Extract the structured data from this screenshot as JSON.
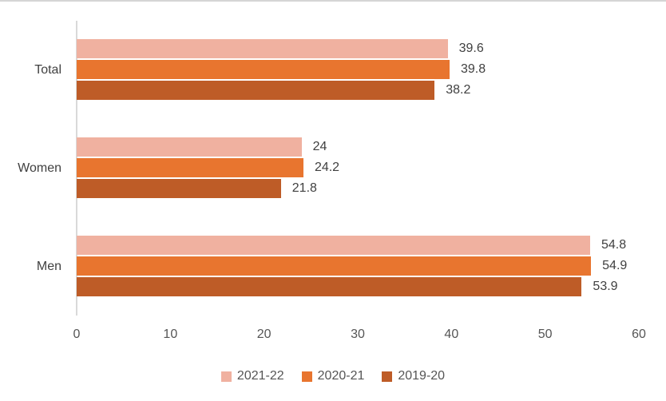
{
  "chart_data": {
    "type": "bar",
    "orientation": "horizontal",
    "title": "",
    "xlabel": "",
    "ylabel": "",
    "categories": [
      "Total",
      "Women",
      "Men"
    ],
    "series": [
      {
        "name": "2021-22",
        "color": "#F0B1A0",
        "values": [
          39.6,
          24,
          54.8
        ],
        "labels": [
          "39.6",
          "24",
          "54.8"
        ]
      },
      {
        "name": "2020-21",
        "color": "#E8752F",
        "values": [
          39.8,
          24.2,
          54.9
        ],
        "labels": [
          "39.8",
          "24.2",
          "54.9"
        ]
      },
      {
        "name": "2019-20",
        "color": "#BE5C27",
        "values": [
          38.2,
          21.8,
          53.9
        ],
        "labels": [
          "38.2",
          "21.8",
          "53.9"
        ]
      }
    ],
    "xlim": [
      0,
      60
    ],
    "x_ticks": [
      "0",
      "10",
      "20",
      "30",
      "40",
      "50",
      "60"
    ],
    "x_tick_values": [
      0,
      10,
      20,
      30,
      40,
      50,
      60
    ],
    "grid": false,
    "legend_position": "bottom",
    "data_labels_shown": true
  },
  "colors": {
    "background": "#ffffff",
    "top_border": "#D5D5D5",
    "axis_line": "#D9D9D9",
    "label_text": "#404040",
    "tick_text": "#555555"
  }
}
